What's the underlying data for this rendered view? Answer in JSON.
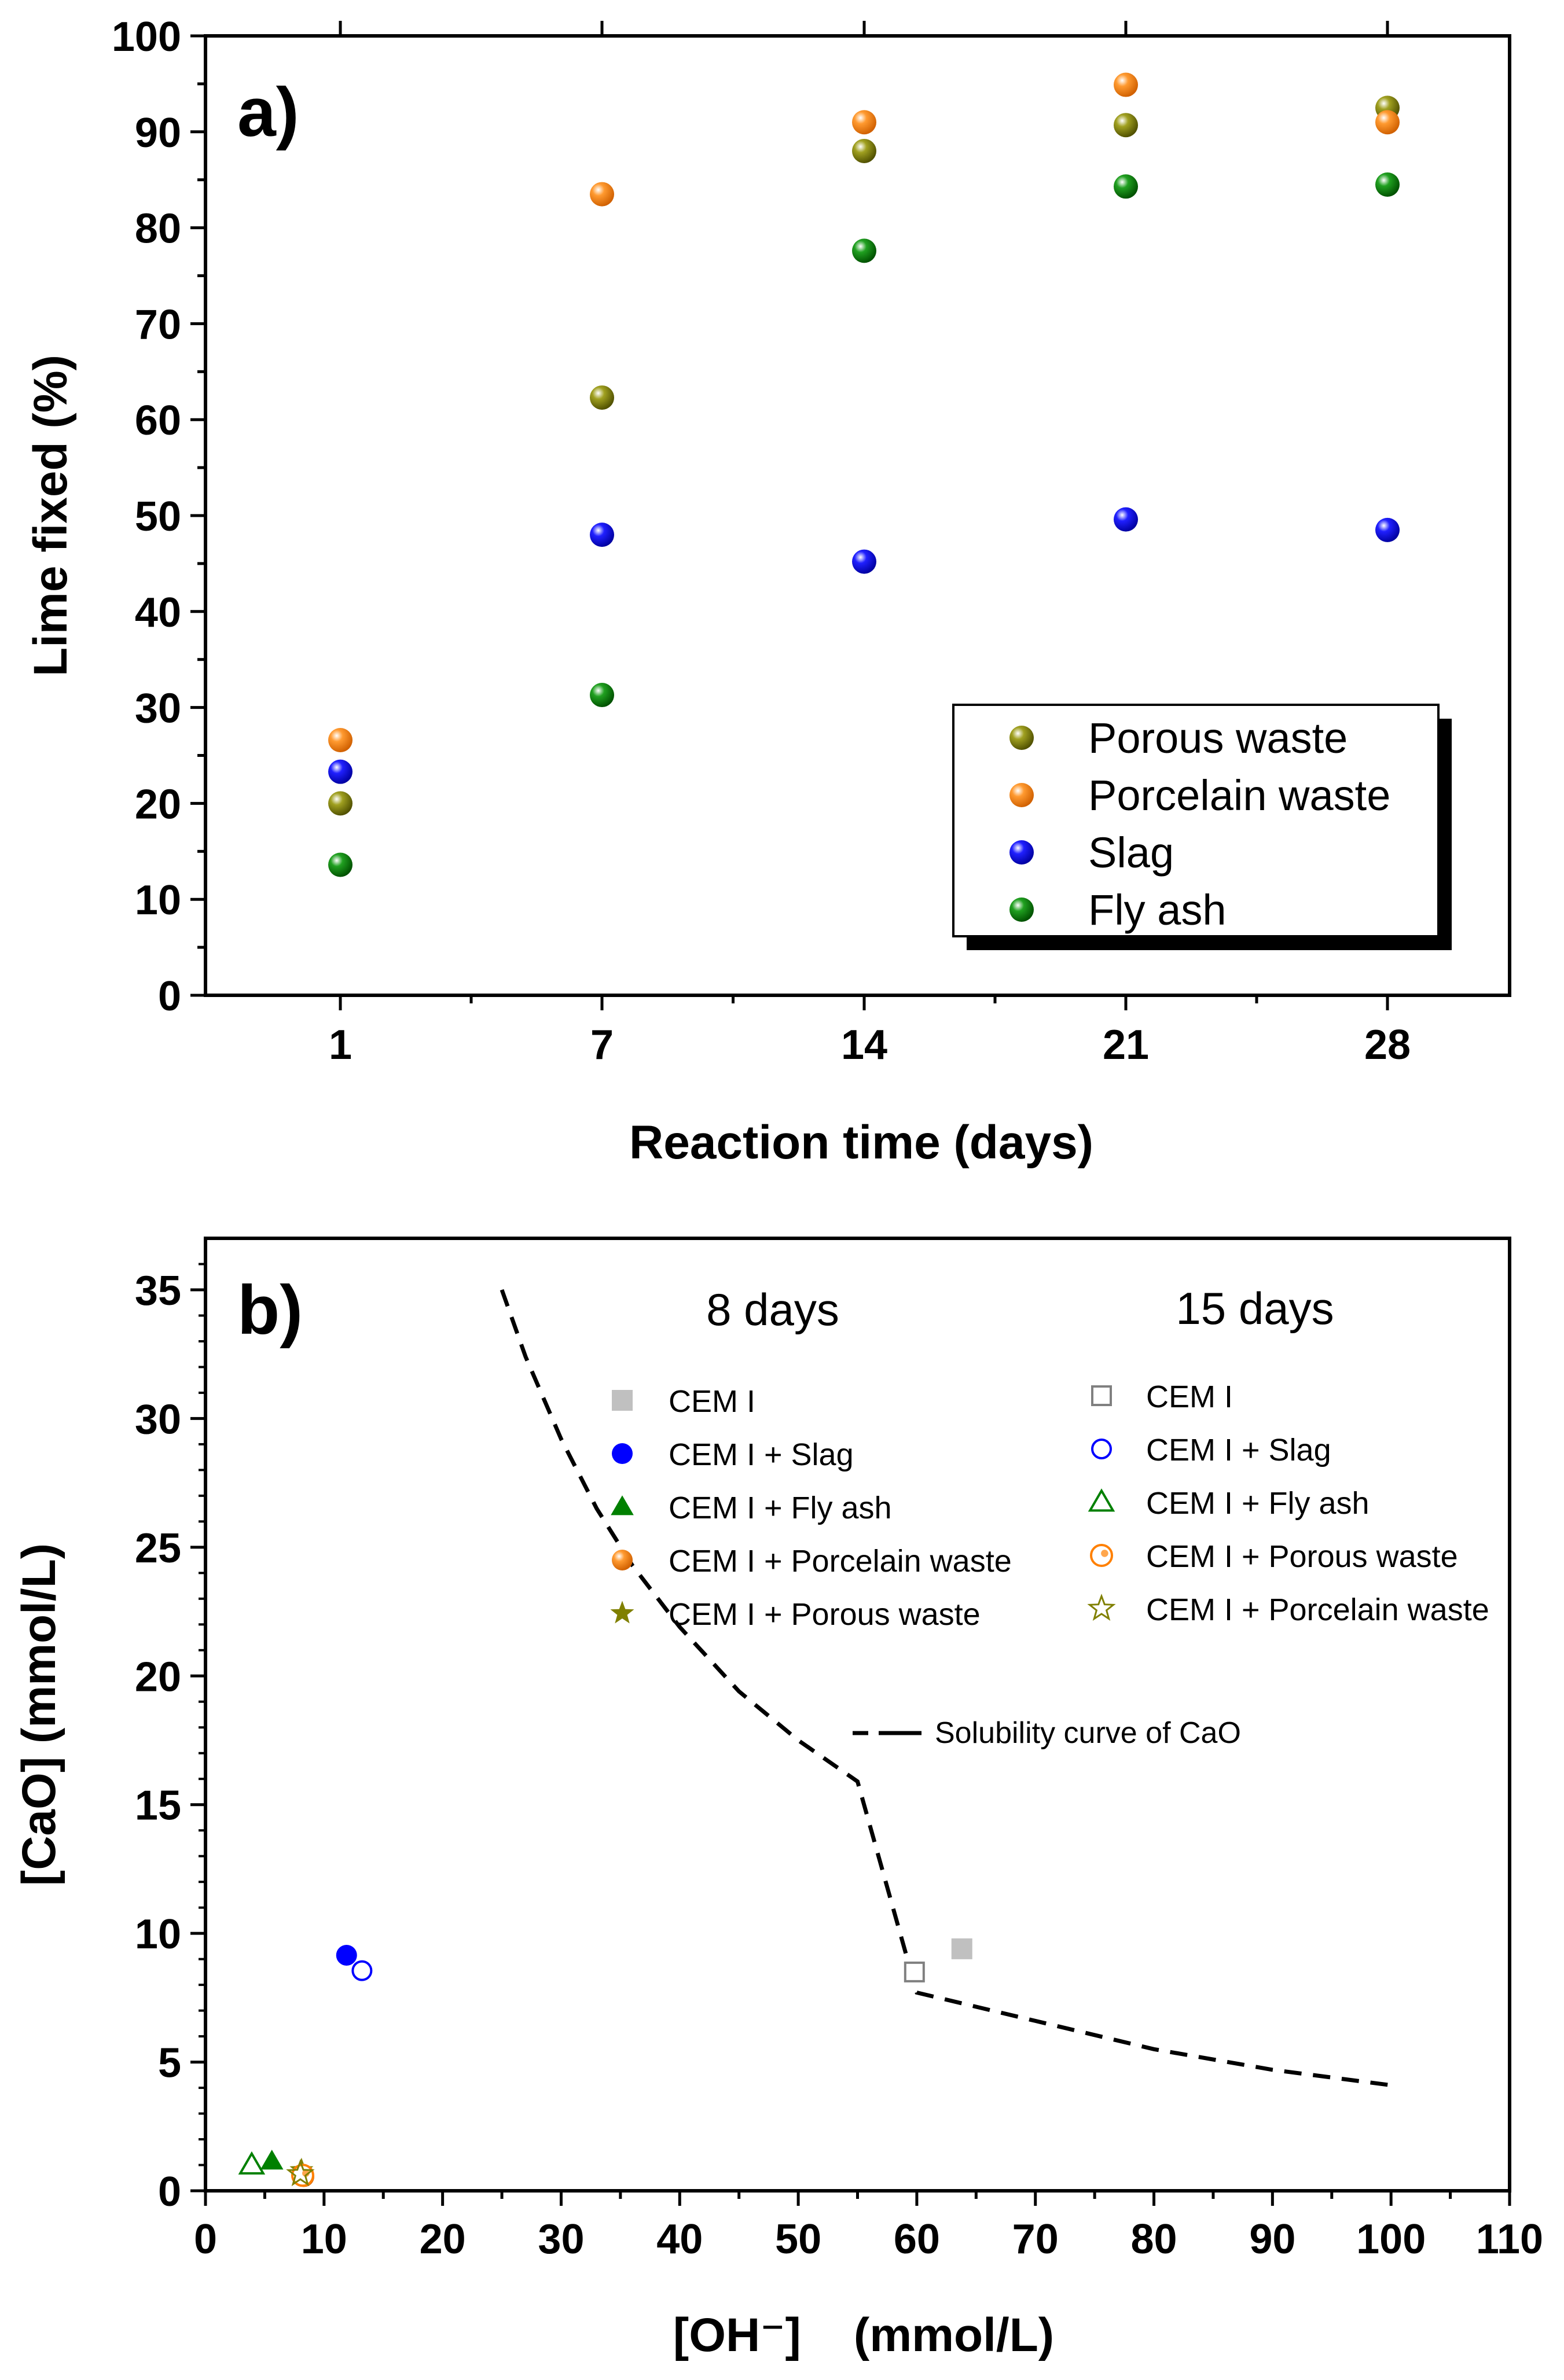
{
  "chart_data": [
    {
      "type": "scatter",
      "panel_label": "a)",
      "xlabel": "Reaction time (days)",
      "ylabel": "Lime fixed (%)",
      "x_ticks": [
        "1",
        "7",
        "14",
        "21",
        "28"
      ],
      "y_ticks": [
        "0",
        "10",
        "20",
        "30",
        "40",
        "50",
        "60",
        "70",
        "80",
        "90",
        "100"
      ],
      "ylim": [
        0,
        100
      ],
      "grid": false,
      "legend_position": "bottom-right",
      "series": [
        {
          "name": "Porous waste",
          "color": "#808000",
          "marker": "sphere",
          "points": [
            {
              "x": "1",
              "y": 20.0
            },
            {
              "x": "7",
              "y": 62.3
            },
            {
              "x": "14",
              "y": 88.0
            },
            {
              "x": "21",
              "y": 90.7
            },
            {
              "x": "28",
              "y": 92.5
            }
          ]
        },
        {
          "name": "Porcelain waste",
          "color": "#ff8000",
          "marker": "sphere",
          "points": [
            {
              "x": "1",
              "y": 26.6
            },
            {
              "x": "7",
              "y": 83.5
            },
            {
              "x": "14",
              "y": 91.0
            },
            {
              "x": "21",
              "y": 94.9
            },
            {
              "x": "28",
              "y": 91.0
            }
          ]
        },
        {
          "name": "Slag",
          "color": "#0000ff",
          "marker": "sphere",
          "points": [
            {
              "x": "1",
              "y": 23.3
            },
            {
              "x": "7",
              "y": 48.0
            },
            {
              "x": "14",
              "y": 45.2
            },
            {
              "x": "21",
              "y": 49.6
            },
            {
              "x": "28",
              "y": 48.5
            }
          ]
        },
        {
          "name": "Fly ash",
          "color": "#008000",
          "marker": "sphere",
          "points": [
            {
              "x": "1",
              "y": 13.6
            },
            {
              "x": "7",
              "y": 31.3
            },
            {
              "x": "14",
              "y": 77.6
            },
            {
              "x": "21",
              "y": 84.3
            },
            {
              "x": "28",
              "y": 84.5
            }
          ]
        }
      ]
    },
    {
      "type": "scatter",
      "panel_label": "b)",
      "xlabel": "[OH⁻]    (mmol/L)",
      "ylabel": "[CaO] (mmol/L)",
      "xlim": [
        0,
        110
      ],
      "ylim": [
        0,
        37
      ],
      "x_ticks": [
        "0",
        "10",
        "20",
        "30",
        "40",
        "50",
        "60",
        "70",
        "80",
        "90",
        "100",
        "110"
      ],
      "y_ticks": [
        "0",
        "5",
        "10",
        "15",
        "20",
        "25",
        "30",
        "35"
      ],
      "grid": false,
      "legend_group_titles": [
        "8 days",
        "15 days"
      ],
      "series": [
        {
          "name": "CEM I",
          "group": "8 days",
          "color": "#c0c0c0",
          "marker": "square",
          "filled": true,
          "points": [
            [
              63.8,
              9.4
            ]
          ]
        },
        {
          "name": "CEM I + Slag",
          "group": "8 days",
          "color": "#0000ff",
          "marker": "circle",
          "filled": true,
          "points": [
            [
              11.9,
              9.15
            ]
          ]
        },
        {
          "name": "CEM I + Fly ash",
          "group": "8 days",
          "color": "#008000",
          "marker": "triangle",
          "filled": true,
          "points": [
            [
              5.6,
              1.15
            ]
          ]
        },
        {
          "name": "CEM I + Porcelain waste",
          "group": "8 days",
          "color": "#ff8000",
          "marker": "sphere",
          "filled": true,
          "points": [
            [
              8.3,
              0.55
            ]
          ]
        },
        {
          "name": "CEM I + Porous waste",
          "group": "8 days",
          "color": "#808000",
          "marker": "star",
          "filled": true,
          "points": [
            [
              8.1,
              0.8
            ]
          ]
        },
        {
          "name": "CEM I",
          "group": "15 days",
          "color": "#808080",
          "marker": "square",
          "filled": false,
          "points": [
            [
              59.8,
              8.5
            ]
          ]
        },
        {
          "name": "CEM I + Slag",
          "group": "15 days",
          "color": "#0000ff",
          "marker": "circle",
          "filled": false,
          "points": [
            [
              13.2,
              8.55
            ]
          ]
        },
        {
          "name": "CEM I + Fly ash",
          "group": "15 days",
          "color": "#008000",
          "marker": "triangle",
          "filled": false,
          "points": [
            [
              3.9,
              1.0
            ]
          ]
        },
        {
          "name": "CEM I + Porous waste",
          "group": "15 days",
          "color": "#ff8000",
          "marker": "sphere-open",
          "filled": false,
          "points": [
            [
              8.2,
              0.6
            ]
          ]
        },
        {
          "name": "CEM I + Porcelain waste",
          "group": "15 days",
          "color": "#808000",
          "marker": "star",
          "filled": false,
          "points": [
            [
              8.0,
              0.65
            ]
          ]
        },
        {
          "name": "Solubility curve of CaO",
          "color": "#000000",
          "marker": "dashed-line",
          "points": [
            [
              25,
              35.0
            ],
            [
              27,
              32.4
            ],
            [
              30,
              29.2
            ],
            [
              33,
              26.5
            ],
            [
              36,
              24.3
            ],
            [
              40,
              21.9
            ],
            [
              45,
              19.4
            ],
            [
              50,
              17.5
            ],
            [
              55,
              15.9
            ],
            [
              60,
              7.7
            ],
            [
              70,
              6.6
            ],
            [
              80,
              5.5
            ],
            [
              90,
              4.7
            ],
            [
              100,
              4.1
            ]
          ]
        }
      ]
    }
  ]
}
